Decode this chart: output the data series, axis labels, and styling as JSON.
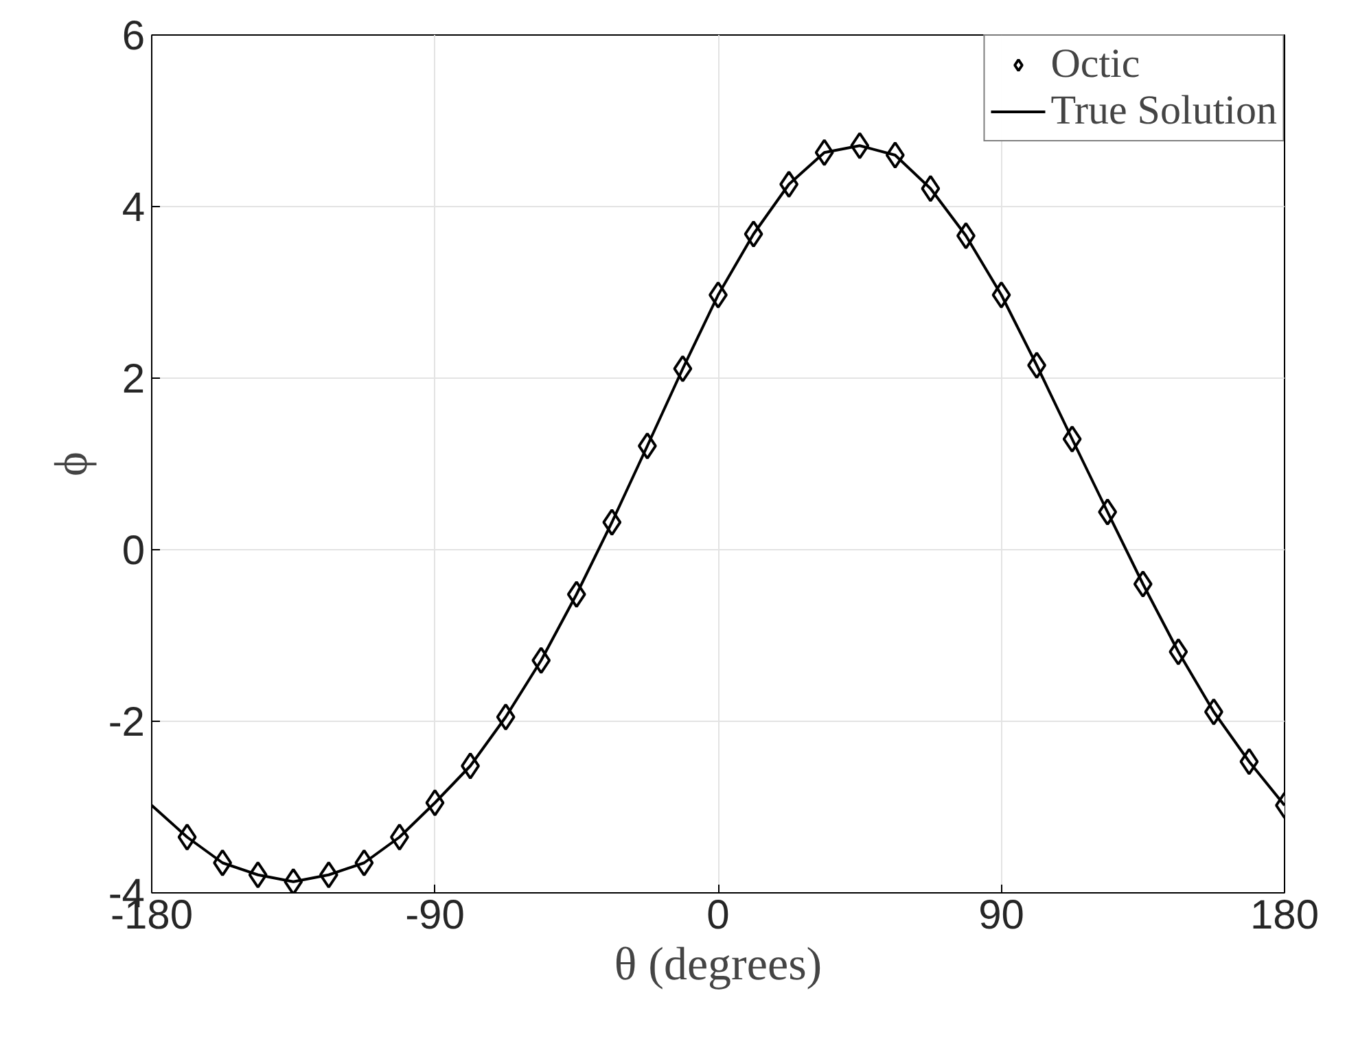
{
  "chart_data": {
    "type": "scatter",
    "xlabel": "θ (degrees)",
    "ylabel": "ϕ",
    "xlim": [
      -180,
      180
    ],
    "xticks": [
      -180,
      -90,
      0,
      90,
      180
    ],
    "ylim": [
      -4,
      6
    ],
    "yticks": [
      -4,
      -2,
      0,
      2,
      4,
      6
    ],
    "grid": true,
    "legend": "top right",
    "series": [
      {
        "name": "Octic",
        "marker": "diamond",
        "color": "#000000",
        "x": [
          -168.75,
          -157.5,
          -146.25,
          -135,
          -123.75,
          -112.5,
          -101.25,
          -90,
          -78.75,
          -67.5,
          -56.25,
          -45,
          -33.75,
          -22.5,
          -11.25,
          0,
          11.25,
          22.5,
          33.75,
          45,
          56.25,
          67.5,
          78.75,
          90,
          101.25,
          112.5,
          123.75,
          135,
          146.25,
          157.5,
          168.75,
          180
        ],
        "values": [
          -3.35,
          -3.65,
          -3.79,
          -3.87,
          -3.79,
          -3.65,
          -3.35,
          -2.95,
          -2.52,
          -1.95,
          -1.29,
          -0.52,
          0.32,
          1.21,
          2.11,
          2.97,
          3.68,
          4.26,
          4.63,
          4.71,
          4.6,
          4.21,
          3.66,
          2.97,
          2.15,
          1.29,
          0.44,
          -0.4,
          -1.19,
          -1.89,
          -2.47,
          -2.98
        ]
      },
      {
        "name": "True Solution",
        "type": "line",
        "line_style": "solid",
        "color": "#000000",
        "x": [
          -180,
          -168.75,
          -157.5,
          -146.25,
          -135,
          -123.75,
          -112.5,
          -101.25,
          -90,
          -78.75,
          -67.5,
          -56.25,
          -45,
          -33.75,
          -22.5,
          -11.25,
          0,
          11.25,
          22.5,
          33.75,
          45,
          56.25,
          67.5,
          78.75,
          90,
          101.25,
          112.5,
          123.75,
          135,
          146.25,
          157.5,
          168.75,
          180
        ],
        "values": [
          -2.98,
          -3.35,
          -3.65,
          -3.79,
          -3.87,
          -3.79,
          -3.65,
          -3.35,
          -2.95,
          -2.52,
          -1.95,
          -1.29,
          -0.52,
          0.32,
          1.21,
          2.11,
          2.97,
          3.68,
          4.26,
          4.63,
          4.71,
          4.6,
          4.21,
          3.66,
          2.97,
          2.15,
          1.29,
          0.44,
          -0.4,
          -1.19,
          -1.89,
          -2.47,
          -2.98
        ]
      }
    ]
  }
}
